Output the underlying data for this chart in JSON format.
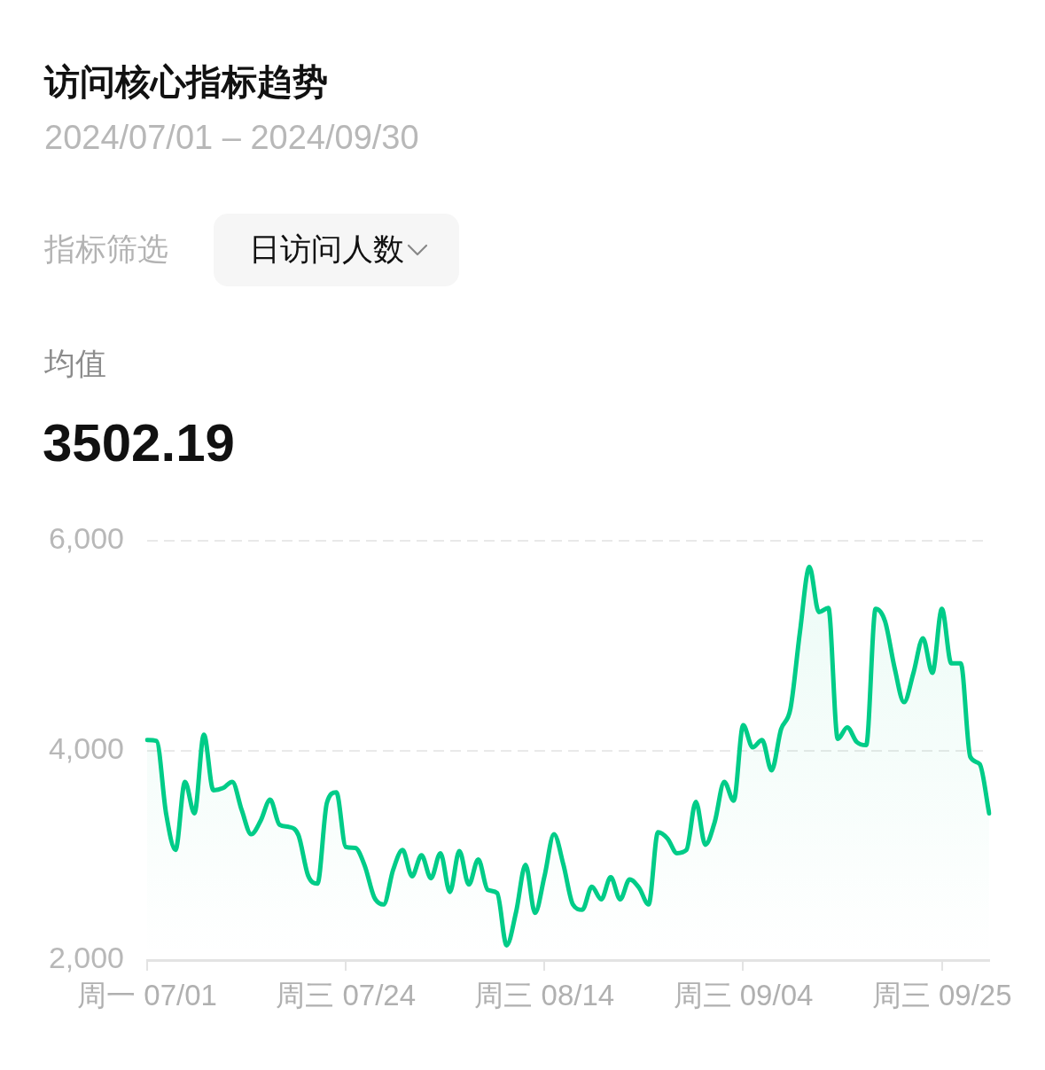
{
  "chart_data": {
    "type": "area",
    "title": "访问核心指标趋势",
    "subtitle": "2024/07/01 – 2024/09/30",
    "annotations": [
      "指标筛选",
      "日访问人数",
      "均值",
      "3502.19"
    ],
    "categories": [
      "周一 07/01",
      null,
      null,
      null,
      null,
      null,
      null,
      null,
      null,
      null,
      null,
      null,
      null,
      null,
      null,
      null,
      null,
      null,
      null,
      null,
      null,
      "周三 07/24",
      null,
      null,
      null,
      null,
      null,
      null,
      null,
      null,
      null,
      null,
      null,
      null,
      null,
      null,
      null,
      null,
      null,
      null,
      null,
      null,
      "周三 08/14",
      null,
      null,
      null,
      null,
      null,
      null,
      null,
      null,
      null,
      null,
      null,
      null,
      null,
      null,
      null,
      null,
      null,
      null,
      null,
      null,
      "周三 09/04",
      null,
      null,
      null,
      null,
      null,
      null,
      null,
      null,
      null,
      null,
      null,
      null,
      null,
      null,
      null,
      null,
      null,
      null,
      null,
      null,
      "周三 09/25",
      null,
      null,
      null,
      null,
      null
    ],
    "series": [
      {
        "color": "#00cc88",
        "values": [
          4100,
          4090,
          3400,
          3050,
          3700,
          3400,
          4150,
          3620,
          3640,
          3700,
          3430,
          3200,
          3330,
          3530,
          3290,
          3270,
          3190,
          2810,
          2730,
          3500,
          3600,
          3080,
          3070,
          2900,
          2600,
          2530,
          2860,
          3050,
          2800,
          3000,
          2780,
          3020,
          2650,
          3040,
          2720,
          2960,
          2670,
          2640,
          2140,
          2460,
          2910,
          2450,
          2800,
          3200,
          2910,
          2530,
          2480,
          2700,
          2580,
          2790,
          2580,
          2770,
          2690,
          2530,
          3220,
          3160,
          3020,
          3050,
          3510,
          3100,
          3320,
          3700,
          3520,
          4240,
          4030,
          4100,
          3810,
          4200,
          4400,
          5130,
          5750,
          5320,
          5360,
          4110,
          4220,
          4080,
          4050,
          5350,
          5230,
          4790,
          4460,
          4740,
          5070,
          4740,
          5350,
          4830,
          4830,
          3940,
          3870,
          3400
        ]
      }
    ],
    "ylim": [
      2000,
      6000
    ],
    "yticks": [
      {
        "value": 2000,
        "label": "2,000"
      },
      {
        "value": 4000,
        "label": "4,000"
      },
      {
        "value": 6000,
        "label": "6,000"
      }
    ],
    "grid": "y"
  }
}
